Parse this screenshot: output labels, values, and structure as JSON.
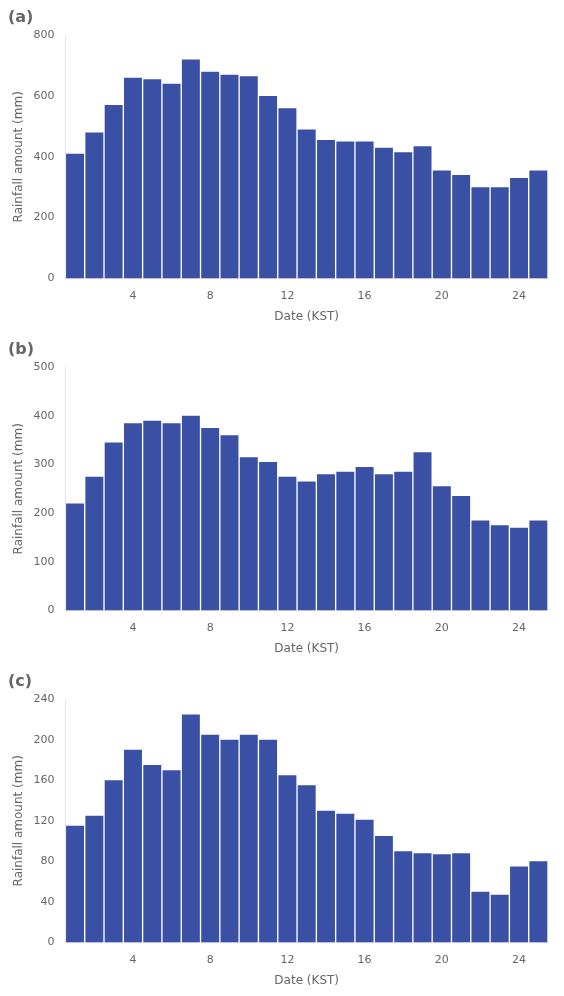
{
  "chart_data": [
    {
      "type": "bar",
      "title": "(a)",
      "x": [
        1,
        2,
        3,
        4,
        5,
        6,
        7,
        8,
        9,
        10,
        11,
        12,
        13,
        14,
        15,
        16,
        17,
        18,
        19,
        20,
        21,
        22,
        23,
        24,
        25
      ],
      "values": [
        410,
        480,
        570,
        660,
        655,
        640,
        720,
        680,
        670,
        665,
        600,
        560,
        490,
        455,
        450,
        450,
        430,
        415,
        435,
        355,
        340,
        300,
        300,
        330,
        355
      ],
      "color": "#3a50a5",
      "xlim": [
        0.5,
        25.5
      ],
      "xticks": [
        4,
        8,
        12,
        16,
        20,
        24
      ],
      "ylim": [
        0,
        800
      ],
      "yticks": [
        0,
        200,
        400,
        600,
        800
      ],
      "xlabel": "Date (KST)",
      "ylabel": "Rainfall amount (mm)",
      "grid": false
    },
    {
      "type": "bar",
      "title": "(b)",
      "x": [
        1,
        2,
        3,
        4,
        5,
        6,
        7,
        8,
        9,
        10,
        11,
        12,
        13,
        14,
        15,
        16,
        17,
        18,
        19,
        20,
        21,
        22,
        23,
        24,
        25
      ],
      "values": [
        220,
        275,
        345,
        385,
        390,
        385,
        400,
        375,
        360,
        315,
        305,
        275,
        265,
        280,
        285,
        295,
        280,
        285,
        325,
        255,
        235,
        185,
        175,
        170,
        185
      ],
      "color": "#3a50a5",
      "xlim": [
        0.5,
        25.5
      ],
      "xticks": [
        4,
        8,
        12,
        16,
        20,
        24
      ],
      "ylim": [
        0,
        500
      ],
      "yticks": [
        0,
        100,
        200,
        300,
        400,
        500
      ],
      "xlabel": "Date (KST)",
      "ylabel": "Rainfall amount (mm)",
      "grid": false
    },
    {
      "type": "bar",
      "title": "(c)",
      "x": [
        1,
        2,
        3,
        4,
        5,
        6,
        7,
        8,
        9,
        10,
        11,
        12,
        13,
        14,
        15,
        16,
        17,
        18,
        19,
        20,
        21,
        22,
        23,
        24,
        25
      ],
      "values": [
        115,
        125,
        160,
        190,
        175,
        170,
        225,
        205,
        200,
        205,
        200,
        165,
        155,
        130,
        127,
        121,
        105,
        90,
        88,
        87,
        88,
        50,
        47,
        75,
        80
      ],
      "color": "#3a50a5",
      "xlim": [
        0.5,
        25.5
      ],
      "xticks": [
        4,
        8,
        12,
        16,
        20,
        24
      ],
      "ylim": [
        0,
        240
      ],
      "yticks": [
        0,
        40,
        80,
        120,
        160,
        200,
        240
      ],
      "xlabel": "Date (KST)",
      "ylabel": "Rainfall amount (mm)",
      "grid": false
    }
  ]
}
